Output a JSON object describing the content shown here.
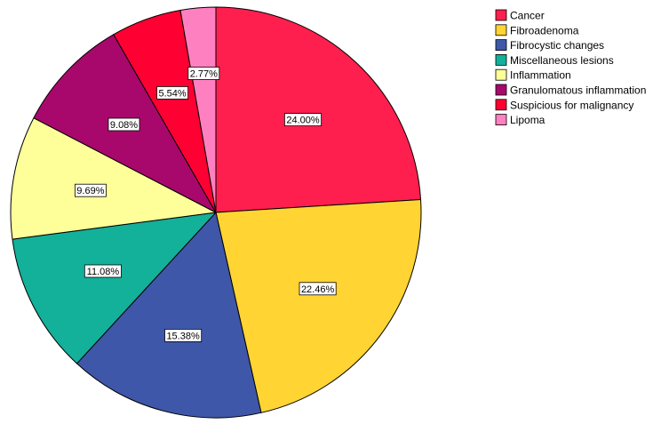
{
  "chart_data": {
    "type": "pie",
    "title": "",
    "legend_position": "top-right",
    "start_angle_deg": 0,
    "direction": "clockwise",
    "slices": [
      {
        "label": "Cancer",
        "value": 24.0,
        "value_label": "24.00%",
        "color": "#FF1F4E"
      },
      {
        "label": "Fibroadenoma",
        "value": 22.46,
        "value_label": "22.46%",
        "color": "#FFD433"
      },
      {
        "label": "Fibrocystic changes",
        "value": 15.38,
        "value_label": "15.38%",
        "color": "#3F57A8"
      },
      {
        "label": "Miscellaneous lesions",
        "value": 11.08,
        "value_label": "11.08%",
        "color": "#13B09A"
      },
      {
        "label": "Inflammation",
        "value": 9.69,
        "value_label": "9.69%",
        "color": "#FFFF99"
      },
      {
        "label": "Granulomatous inflammation",
        "value": 9.08,
        "value_label": "9.08%",
        "color": "#A8086B"
      },
      {
        "label": "Suspicious for malignancy",
        "value": 5.54,
        "value_label": "5.54%",
        "color": "#FF0033"
      },
      {
        "label": "Lipoma",
        "value": 2.77,
        "value_label": "2.77%",
        "color": "#FF80C0"
      }
    ]
  }
}
